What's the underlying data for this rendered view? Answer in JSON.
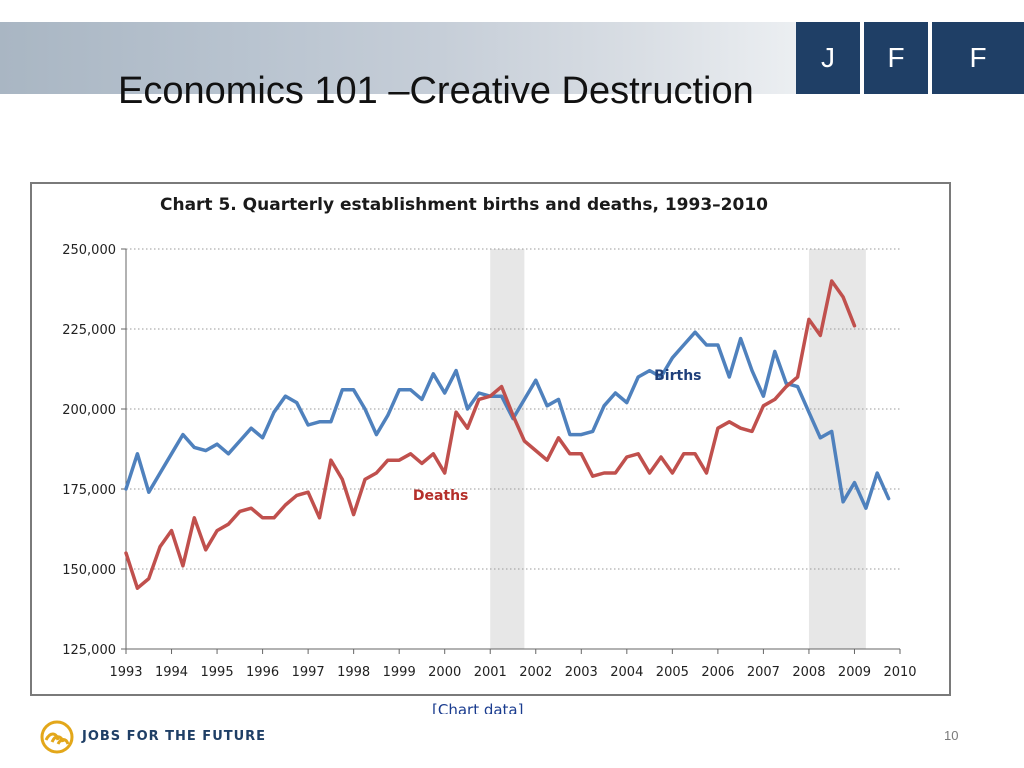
{
  "slide": {
    "title": "Economics 101 –Creative Destruction",
    "page_number": "10"
  },
  "logo": {
    "letters": [
      "J",
      "F",
      "F"
    ],
    "brand_color": "#1f3f66"
  },
  "footer": {
    "org_name": "JOBS FOR THE FUTURE",
    "logo_icon": "jff-swirl-logo",
    "logo_color": "#e3a71a"
  },
  "chart_link": "[Chart data]",
  "chart_data": {
    "type": "line",
    "title": "Chart 5. Quarterly establishment births and deaths, 1993–2010",
    "xlabel": "",
    "ylabel": "",
    "ylim": [
      125000,
      250000
    ],
    "xlim": [
      1993,
      2010
    ],
    "y_ticks": [
      "125,000",
      "150,000",
      "175,000",
      "200,000",
      "225,000",
      "250,000"
    ],
    "x_ticks": [
      "1993",
      "1994",
      "1995",
      "1996",
      "1997",
      "1998",
      "1999",
      "2000",
      "2001",
      "2002",
      "2003",
      "2004",
      "2005",
      "2006",
      "2007",
      "2008",
      "2009",
      "2010"
    ],
    "grid": "horizontal-dotted",
    "recessions": [
      {
        "start": 2001.0,
        "end": 2001.75
      },
      {
        "start": 2008.0,
        "end": 2009.25
      }
    ],
    "series": [
      {
        "name": "Births",
        "color": "#4f81bd",
        "start_year": 1993,
        "values": [
          175000,
          186000,
          174000,
          180000,
          186000,
          192000,
          188000,
          187000,
          189000,
          186000,
          190000,
          194000,
          191000,
          199000,
          204000,
          202000,
          195000,
          196000,
          196000,
          206000,
          206000,
          200000,
          192000,
          198000,
          206000,
          206000,
          203000,
          211000,
          205000,
          212000,
          200000,
          205000,
          204000,
          204000,
          197000,
          203000,
          209000,
          201000,
          203000,
          192000,
          192000,
          193000,
          201000,
          205000,
          202000,
          210000,
          212000,
          210000,
          216000,
          220000,
          224000,
          220000,
          220000,
          210000,
          222000,
          212000,
          204000,
          218000,
          208000,
          207000,
          199000,
          191000,
          193000,
          171000,
          177000,
          169000,
          180000,
          172000
        ]
      },
      {
        "name": "Deaths",
        "color": "#c0504d",
        "start_year": 1993,
        "values": [
          155000,
          144000,
          147000,
          157000,
          162000,
          151000,
          166000,
          156000,
          162000,
          164000,
          168000,
          169000,
          166000,
          166000,
          170000,
          173000,
          174000,
          166000,
          184000,
          178000,
          167000,
          178000,
          180000,
          184000,
          184000,
          186000,
          183000,
          186000,
          180000,
          199000,
          194000,
          203000,
          204000,
          207000,
          198000,
          190000,
          187000,
          184000,
          191000,
          186000,
          186000,
          179000,
          180000,
          180000,
          185000,
          186000,
          180000,
          185000,
          180000,
          186000,
          186000,
          180000,
          194000,
          196000,
          194000,
          193000,
          201000,
          203000,
          207000,
          210000,
          228000,
          223000,
          240000,
          235000,
          226000
        ]
      }
    ],
    "annotations": [
      {
        "text": "Births",
        "series": "Births",
        "x": 2004.6,
        "y": 209000
      },
      {
        "text": "Deaths",
        "series": "Deaths",
        "x": 1999.3,
        "y": 171500
      }
    ]
  }
}
